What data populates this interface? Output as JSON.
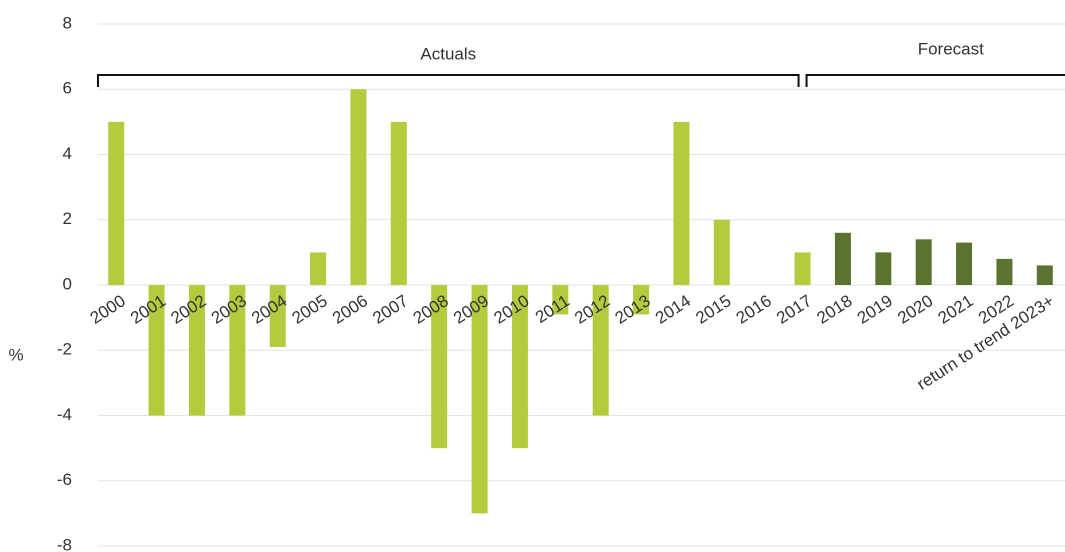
{
  "chart_data": {
    "type": "bar",
    "y_label": "%",
    "categories": [
      "2000",
      "2001",
      "2002",
      "2003",
      "2004",
      "2005",
      "2006",
      "2007",
      "2008",
      "2009",
      "2010",
      "2011",
      "2012",
      "2013",
      "2014",
      "2015",
      "2016",
      "2017",
      "2018",
      "2019",
      "2020",
      "2021",
      "2022",
      "return to trend 2023+"
    ],
    "values": [
      5,
      -4,
      -4,
      -4,
      -1.9,
      1,
      6,
      5,
      -5,
      -7,
      -5,
      -0.9,
      -4,
      -0.9,
      5,
      2,
      0,
      1,
      1.6,
      1,
      1.4,
      1.3,
      0.8,
      0.6
    ],
    "colors": [
      "#b3cb3c",
      "#b3cb3c",
      "#b3cb3c",
      "#b3cb3c",
      "#b3cb3c",
      "#b3cb3c",
      "#b3cb3c",
      "#b3cb3c",
      "#b3cb3c",
      "#b3cb3c",
      "#b3cb3c",
      "#b3cb3c",
      "#b3cb3c",
      "#b3cb3c",
      "#b3cb3c",
      "#b3cb3c",
      "#b3cb3c",
      "#b3cb3c",
      "#5b7330",
      "#5b7330",
      "#5b7330",
      "#5b7330",
      "#5b7330",
      "#5b7330"
    ],
    "annotations": [
      {
        "text": "Actuals"
      },
      {
        "text": "Forecast"
      }
    ],
    "ylim": [
      -8,
      8
    ],
    "yticks": [
      -8,
      -6,
      -4,
      -2,
      0,
      2,
      4,
      6,
      8
    ],
    "grid": true
  }
}
